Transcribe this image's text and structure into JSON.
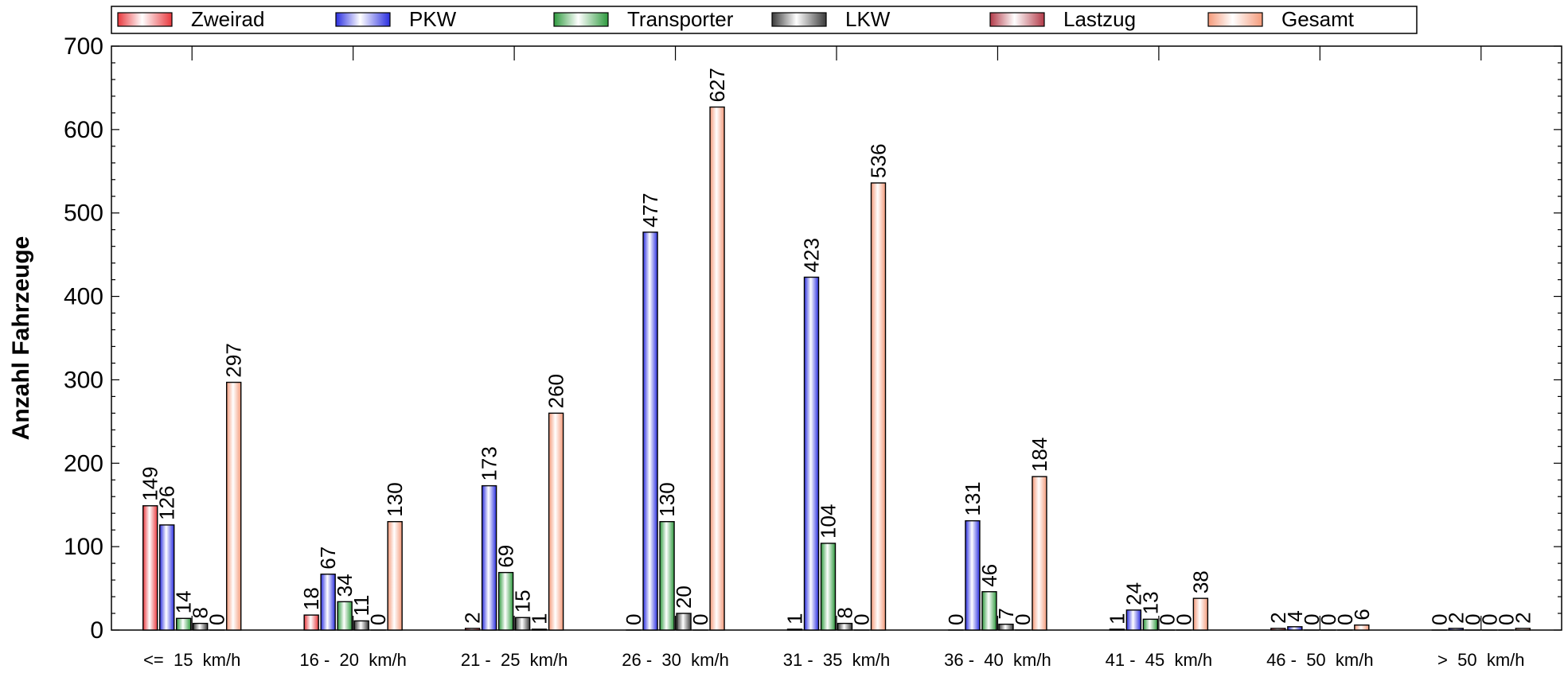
{
  "chart_data": {
    "type": "bar",
    "title": "",
    "xlabel": "",
    "ylabel": "Anzahl Fahrzeuge",
    "ylim": [
      0,
      700
    ],
    "yticks": [
      0,
      100,
      200,
      300,
      400,
      500,
      600,
      700
    ],
    "grid": false,
    "legend_position": "top",
    "categories": [
      "<=  15  km/h",
      "16 -  20  km/h",
      "21 -  25  km/h",
      "26 -  30  km/h",
      "31 -  35  km/h",
      "36 -  40  km/h",
      "41 -  45  km/h",
      "46 -  50  km/h",
      ">  50  km/h"
    ],
    "series": [
      {
        "name": "Zweirad",
        "color": "#e8383d",
        "values": [
          149,
          18,
          2,
          0,
          1,
          0,
          1,
          2,
          0
        ]
      },
      {
        "name": "PKW",
        "color": "#2a2ee0",
        "values": [
          126,
          67,
          173,
          477,
          423,
          131,
          24,
          4,
          2
        ]
      },
      {
        "name": "Transporter",
        "color": "#2e9a3e",
        "values": [
          14,
          34,
          69,
          130,
          104,
          46,
          13,
          0,
          0
        ]
      },
      {
        "name": "LKW",
        "color": "#3a3a3a",
        "values": [
          8,
          11,
          15,
          20,
          8,
          7,
          0,
          0,
          0
        ]
      },
      {
        "name": "Lastzug",
        "color": "#b23a48",
        "values": [
          0,
          0,
          1,
          0,
          0,
          0,
          0,
          0,
          0
        ]
      },
      {
        "name": "Gesamt",
        "color": "#f49a7a",
        "values": [
          297,
          130,
          260,
          627,
          536,
          184,
          38,
          6,
          2
        ]
      }
    ]
  }
}
